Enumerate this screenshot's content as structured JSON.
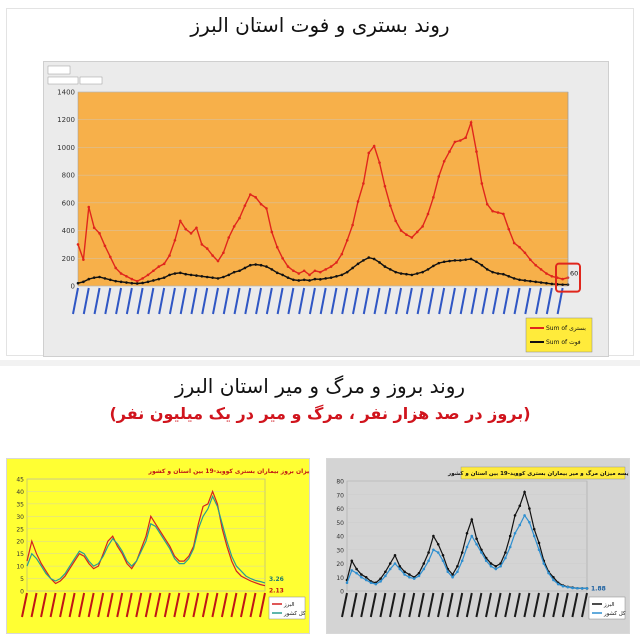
{
  "top": {
    "title": "روند بستری و فوت استان البرز",
    "callout_value": "60",
    "legend": [
      "Sum of بستری",
      "Sum of فوت"
    ],
    "chart_data": {
      "type": "line",
      "title": "روند بستری و فوت استان البرز",
      "ylim": [
        0,
        1400
      ],
      "yticks": [
        0,
        200,
        400,
        600,
        800,
        1000,
        1200,
        1400
      ],
      "colors": {
        "bg": "#f7b04a",
        "frame": "#ebebeb",
        "line1": "#e0261c",
        "line2": "#111111",
        "callout": "#e0261c"
      },
      "series": [
        {
          "name": "Sum of بستری",
          "values": [
            300,
            190,
            570,
            420,
            380,
            290,
            210,
            130,
            90,
            70,
            50,
            35,
            55,
            80,
            110,
            140,
            160,
            220,
            330,
            470,
            410,
            380,
            420,
            300,
            270,
            220,
            180,
            240,
            350,
            430,
            490,
            580,
            660,
            640,
            590,
            560,
            390,
            280,
            200,
            140,
            110,
            90,
            110,
            80,
            110,
            100,
            120,
            140,
            170,
            230,
            330,
            440,
            610,
            740,
            960,
            1010,
            890,
            720,
            580,
            470,
            400,
            370,
            350,
            390,
            430,
            520,
            640,
            790,
            900,
            970,
            1040,
            1050,
            1070,
            1180,
            970,
            740,
            590,
            540,
            530,
            520,
            410,
            310,
            280,
            240,
            190,
            150,
            120,
            90,
            70,
            60,
            50,
            60
          ]
        },
        {
          "name": "Sum of فوت",
          "values": [
            20,
            30,
            50,
            60,
            65,
            55,
            45,
            35,
            30,
            25,
            20,
            18,
            22,
            30,
            40,
            50,
            60,
            80,
            90,
            95,
            85,
            80,
            75,
            70,
            65,
            60,
            55,
            65,
            80,
            100,
            110,
            130,
            150,
            155,
            150,
            140,
            120,
            95,
            80,
            60,
            45,
            40,
            45,
            40,
            50,
            48,
            55,
            60,
            70,
            80,
            100,
            130,
            160,
            185,
            205,
            195,
            170,
            140,
            120,
            100,
            90,
            85,
            80,
            90,
            100,
            120,
            145,
            165,
            175,
            180,
            185,
            185,
            190,
            195,
            175,
            150,
            120,
            100,
            90,
            85,
            70,
            55,
            45,
            40,
            35,
            30,
            25,
            20,
            15,
            12,
            10,
            10
          ]
        }
      ]
    }
  },
  "mid": {
    "title": "روند بروز و مرگ و میر استان البرز",
    "subtitle": "(بروز در صد هزار نفر ، مرگ و میر در یک میلیون نفر)"
  },
  "bottom_left": {
    "title": "مقایسه میزان بروز بیماران بستری کووید-19 بین استان و کشور",
    "value_a": "3.26",
    "value_b": "2.13",
    "legend": [
      "البرز",
      "کل کشور"
    ],
    "chart_data": {
      "type": "line",
      "title": "مقایسه میزان بروز بیماران بستری کووید-19 بین استان و کشور",
      "ylim": [
        0,
        45
      ],
      "yticks": [
        0,
        5,
        10,
        15,
        20,
        25,
        30,
        35,
        40,
        45
      ],
      "colors": {
        "bg": "#ffff33",
        "line1": "#d42020",
        "line2": "#2a9d8f"
      },
      "series": [
        {
          "name": "البرز",
          "values": [
            12,
            20,
            15,
            11,
            8,
            5,
            3,
            4,
            6,
            9,
            12,
            15,
            14,
            11,
            9,
            10,
            15,
            20,
            22,
            18,
            15,
            11,
            9,
            12,
            17,
            22,
            30,
            27,
            24,
            21,
            18,
            14,
            12,
            12,
            14,
            18,
            27,
            34,
            35,
            40,
            35,
            25,
            18,
            12,
            8,
            6,
            5,
            4,
            3.3,
            2.6,
            2.13
          ]
        },
        {
          "name": "کل کشور",
          "values": [
            10,
            15,
            13,
            10,
            7,
            5,
            4,
            5,
            7,
            10,
            13,
            16,
            15,
            12,
            10,
            11,
            14,
            18,
            21,
            19,
            16,
            12,
            10,
            12,
            16,
            20,
            27,
            26,
            23,
            20,
            17,
            13,
            11,
            11,
            13,
            17,
            25,
            30,
            33,
            38,
            34,
            27,
            20,
            14,
            10,
            8,
            6,
            5,
            4.2,
            3.8,
            3.26
          ]
        }
      ]
    }
  },
  "bottom_right": {
    "title": "مقایسه میزان مرگ و میر بیماران بستری کووید-19 بین استان و کشور",
    "value_a": "1.88",
    "legend": [
      "البرز",
      "کل کشور"
    ],
    "chart_data": {
      "type": "line",
      "title": "مقایسه میزان مرگ و میر بیماران بستری کووید-19 بین استان و کشور",
      "ylim": [
        0,
        80
      ],
      "yticks": [
        0,
        10,
        20,
        30,
        40,
        50,
        60,
        70,
        80
      ],
      "colors": {
        "bg": "#d4d4d4",
        "line1": "#111111",
        "line2": "#2e8fd0"
      },
      "series": [
        {
          "name": "البرز",
          "values": [
            8,
            22,
            16,
            12,
            10,
            7,
            6,
            9,
            14,
            20,
            26,
            18,
            14,
            12,
            10,
            13,
            20,
            28,
            40,
            34,
            26,
            16,
            12,
            18,
            28,
            42,
            52,
            38,
            30,
            24,
            20,
            18,
            20,
            28,
            40,
            55,
            62,
            72,
            60,
            45,
            35,
            22,
            14,
            10,
            6,
            4,
            3,
            2.5,
            2,
            1.9,
            1.88
          ]
        },
        {
          "name": "کل کشور",
          "values": [
            6,
            15,
            13,
            10,
            8,
            6,
            5,
            7,
            11,
            16,
            20,
            16,
            12,
            10,
            9,
            11,
            16,
            22,
            30,
            28,
            22,
            14,
            10,
            14,
            22,
            32,
            40,
            34,
            28,
            22,
            18,
            16,
            18,
            24,
            32,
            42,
            48,
            55,
            50,
            40,
            30,
            20,
            13,
            8,
            5,
            3.5,
            2.8,
            2.2,
            2,
            1.9,
            1.88
          ]
        }
      ]
    }
  }
}
